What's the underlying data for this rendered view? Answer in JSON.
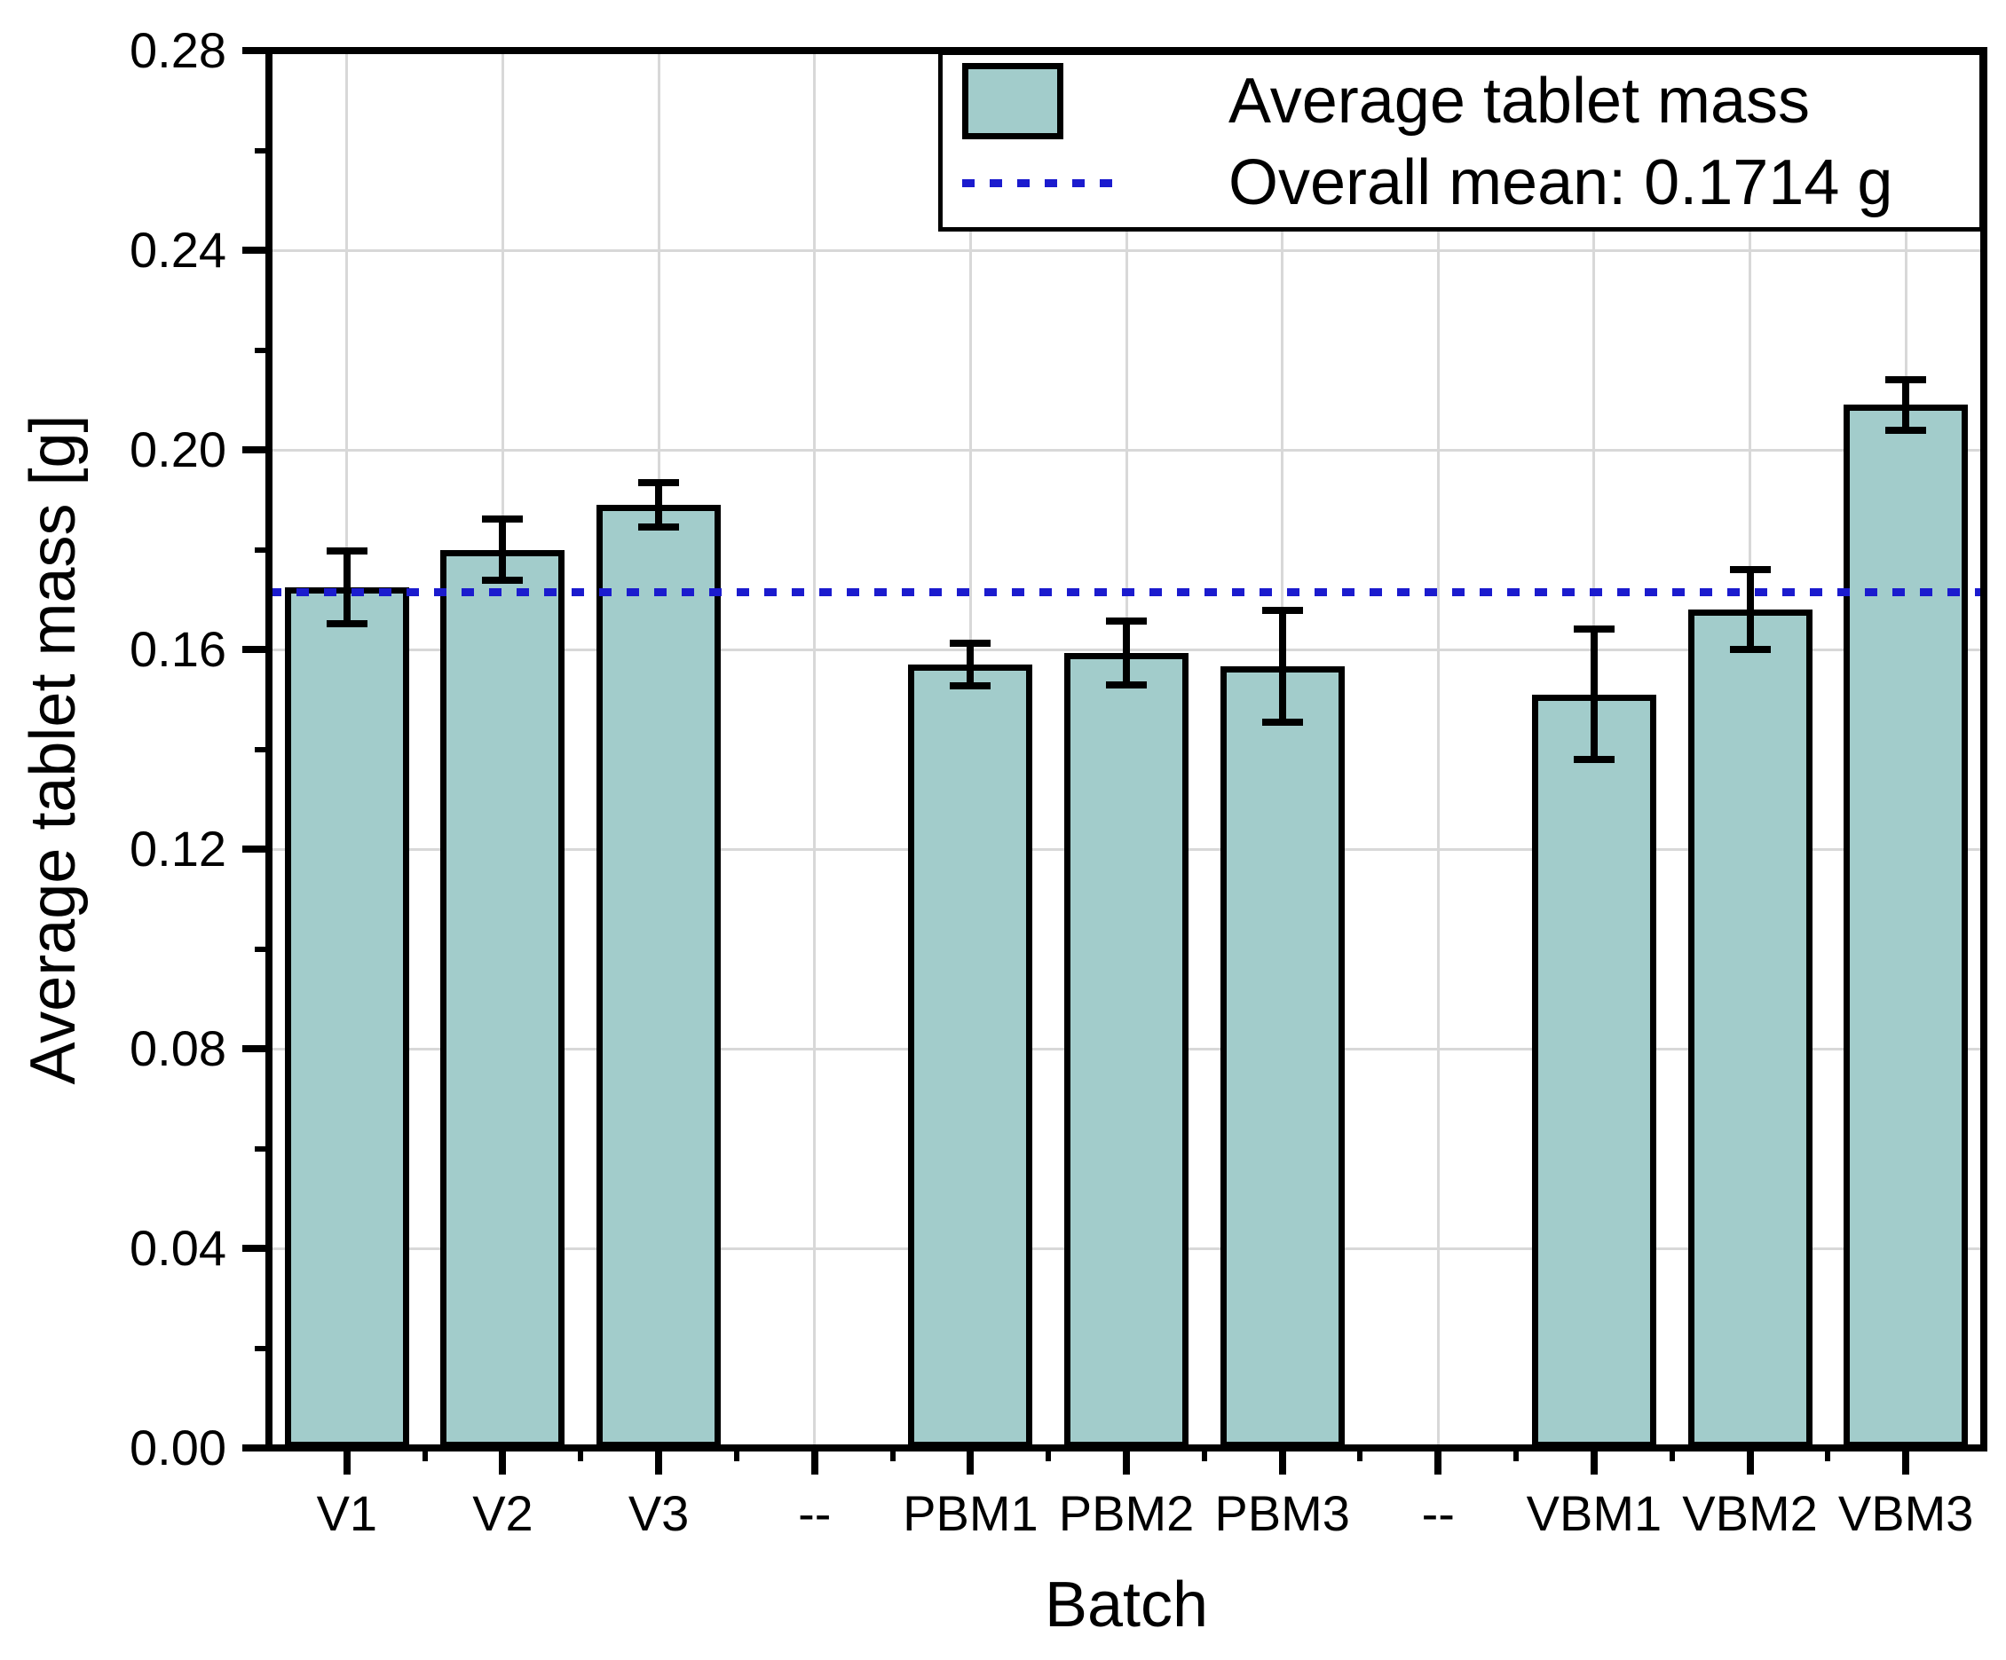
{
  "axes": {
    "y_title": "Average tablet mass [g]",
    "x_title": "Batch"
  },
  "legend": {
    "series_label": "Average tablet mass",
    "mean_label": "Overall mean: 0.1714 g"
  },
  "chart_data": {
    "type": "bar",
    "title": "",
    "xlabel": "Batch",
    "ylabel": "Average tablet mass [g]",
    "categories": [
      "V1",
      "V2",
      "V3",
      "--",
      "PBM1",
      "PBM2",
      "PBM3",
      "--",
      "VBM1",
      "VBM2",
      "VBM3"
    ],
    "values": [
      0.1725,
      0.18,
      0.189,
      null,
      0.157,
      0.1593,
      0.1567,
      null,
      0.151,
      0.168,
      0.209
    ],
    "errors": [
      0.008,
      0.0068,
      0.0052,
      null,
      0.005,
      0.0071,
      0.0119,
      null,
      0.0138,
      0.0087,
      0.0058
    ],
    "overall_mean": 0.1714,
    "ylim": [
      0.0,
      0.28
    ],
    "y_major_step": 0.04,
    "y_minor_step": 0.02,
    "y_tick_labels": [
      "0.00",
      "0.04",
      "0.08",
      "0.12",
      "0.16",
      "0.20",
      "0.24",
      "0.28"
    ],
    "grid": true,
    "legend_position": "top-right",
    "colors": {
      "bar_fill": "#a2cccb",
      "bar_border": "#000000",
      "mean_line": "#1b1bce",
      "gridline": "#d8d8d8",
      "axis": "#000000"
    }
  }
}
